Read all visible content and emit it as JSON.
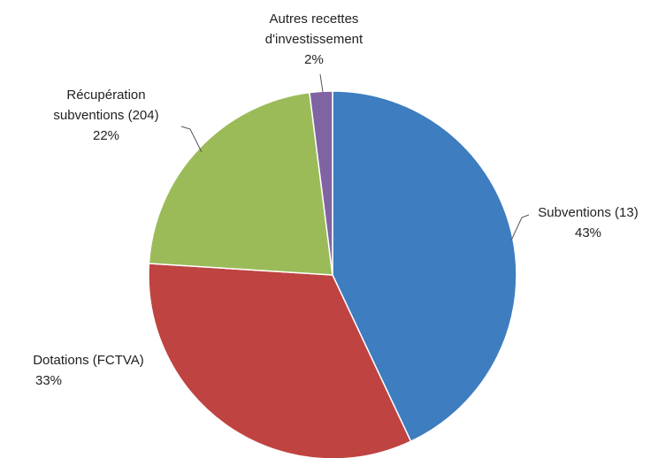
{
  "chart_data": {
    "type": "pie",
    "categories": [
      "Subventions (13)",
      "Dotations (FCTVA)",
      "Récupération subventions (204)",
      "Autres recettes d'investissement"
    ],
    "values": [
      43,
      33,
      22,
      2
    ],
    "value_labels": [
      "43%",
      "33%",
      "22%",
      "2%"
    ],
    "colors": [
      "#3d7dc0",
      "#bf4341",
      "#9bbb59",
      "#7f63a2"
    ]
  }
}
